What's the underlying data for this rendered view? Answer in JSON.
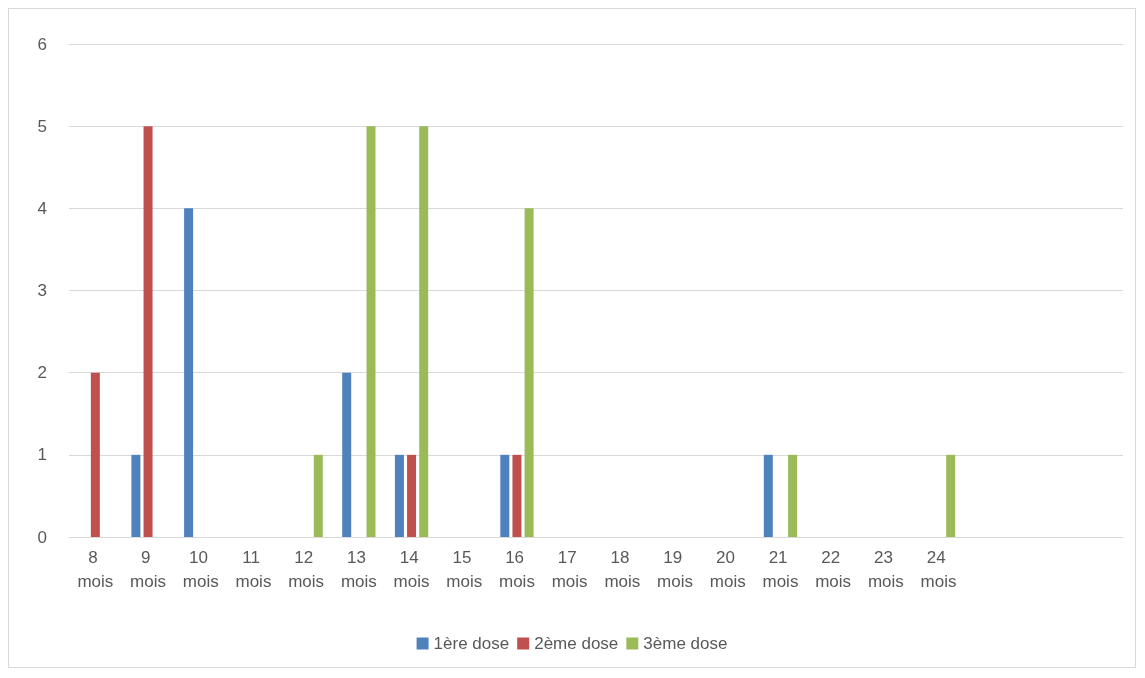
{
  "chart_data": {
    "type": "bar",
    "categories": [
      "8 mois",
      "9 mois",
      "10 mois",
      "11 mois",
      "12 mois",
      "13 mois",
      "14 mois",
      "15 mois",
      "16 mois",
      "17 mois",
      "18 mois",
      "19 mois",
      "20 mois",
      "21 mois",
      "22 mois",
      "23 mois",
      "24 mois",
      null,
      null,
      null
    ],
    "series": [
      {
        "name": "1ère dose",
        "color": "#4f81bd",
        "values": [
          0,
          1,
          4,
          0,
          0,
          2,
          1,
          0,
          1,
          0,
          0,
          0,
          0,
          1,
          0,
          0,
          0,
          0,
          0,
          0
        ]
      },
      {
        "name": "2ème dose",
        "color": "#c0504d",
        "values": [
          2,
          5,
          0,
          0,
          0,
          0,
          1,
          0,
          1,
          0,
          0,
          0,
          0,
          0,
          0,
          0,
          0,
          0,
          0,
          0
        ]
      },
      {
        "name": "3ème dose",
        "color": "#9bbb59",
        "values": [
          0,
          0,
          0,
          0,
          1,
          5,
          5,
          0,
          4,
          0,
          0,
          0,
          0,
          1,
          0,
          0,
          1,
          0,
          0,
          0
        ]
      }
    ],
    "ylim": [
      0,
      6
    ],
    "yticks": [
      0,
      1,
      2,
      3,
      4,
      5,
      6
    ],
    "grid": "y",
    "legend": "bottom"
  }
}
